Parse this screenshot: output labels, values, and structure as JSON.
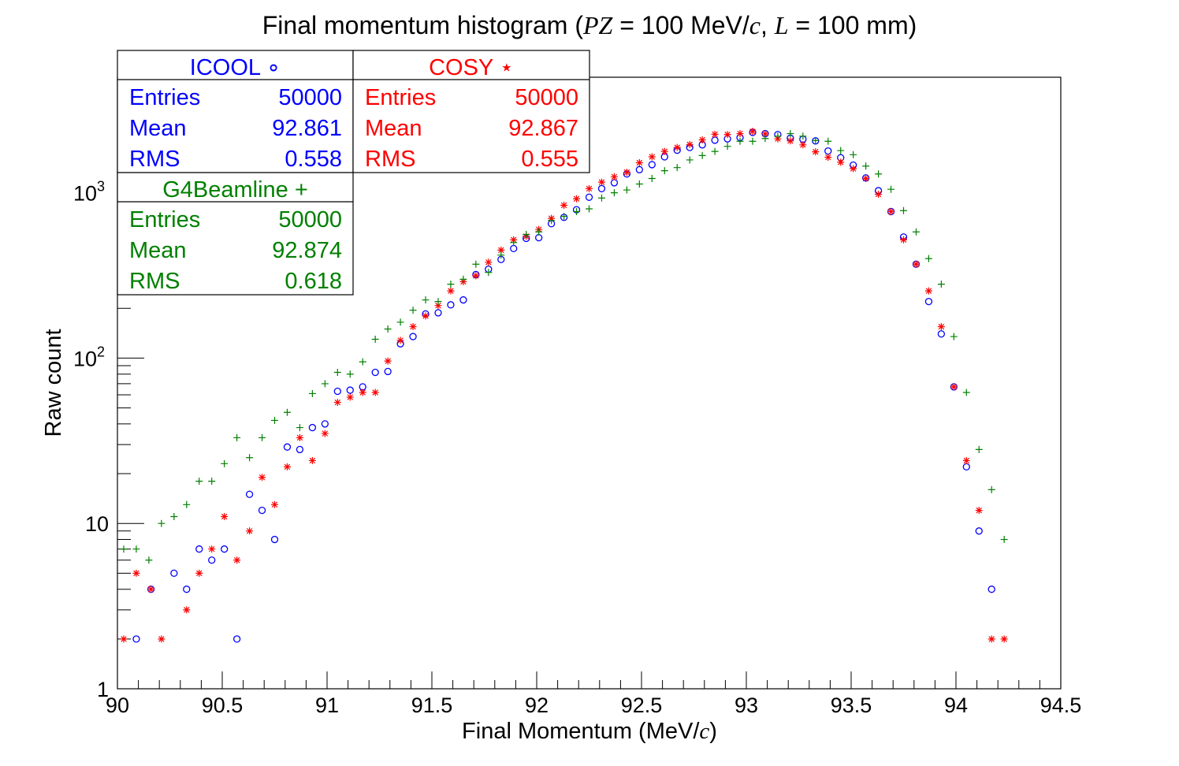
{
  "chart_data": {
    "type": "scatter",
    "title": {
      "prefix": "Final momentum histogram (",
      "var1": "PZ",
      "mid1": " = 100 MeV/",
      "var2": "c",
      "mid2": ", ",
      "var3": "L",
      "suffix": " = 100 mm)"
    },
    "xlabel": {
      "text": "Final Momentum (MeV/",
      "var": "c",
      "close": ")"
    },
    "ylabel": "Raw count",
    "xlim": [
      90,
      94.5
    ],
    "ylim": [
      1,
      5000
    ],
    "y_scale": "log",
    "x_ticks": [
      "90",
      "90.5",
      "91",
      "91.5",
      "92",
      "92.5",
      "93",
      "93.5",
      "94",
      "94.5"
    ],
    "y_ticks": [
      {
        "value": 1,
        "base": "1",
        "exp": ""
      },
      {
        "value": 10,
        "base": "10",
        "exp": ""
      },
      {
        "value": 100,
        "base": "10",
        "exp": "2"
      },
      {
        "value": 1000,
        "base": "10",
        "exp": "3"
      }
    ],
    "series": [
      {
        "name": "ICOOL",
        "marker": "circle",
        "marker_glyph": "∘",
        "color": "#0000ff",
        "stats": {
          "Entries": "50000",
          "Mean": "92.861",
          "RMS": "0.558"
        },
        "points": [
          [
            90.09,
            2
          ],
          [
            90.16,
            4
          ],
          [
            90.27,
            5
          ],
          [
            90.33,
            4
          ],
          [
            90.39,
            7
          ],
          [
            90.45,
            6
          ],
          [
            90.51,
            7
          ],
          [
            90.57,
            2
          ],
          [
            90.63,
            15
          ],
          [
            90.69,
            12
          ],
          [
            90.75,
            8
          ],
          [
            90.81,
            29
          ],
          [
            90.87,
            28
          ],
          [
            90.93,
            38
          ],
          [
            90.99,
            40
          ],
          [
            91.05,
            63
          ],
          [
            91.11,
            64
          ],
          [
            91.17,
            67
          ],
          [
            91.23,
            82
          ],
          [
            91.29,
            83
          ],
          [
            91.35,
            122
          ],
          [
            91.41,
            135
          ],
          [
            91.47,
            185
          ],
          [
            91.53,
            188
          ],
          [
            91.59,
            210
          ],
          [
            91.65,
            225
          ],
          [
            91.71,
            320
          ],
          [
            91.77,
            345
          ],
          [
            91.83,
            395
          ],
          [
            91.89,
            460
          ],
          [
            91.95,
            530
          ],
          [
            92.01,
            535
          ],
          [
            92.07,
            650
          ],
          [
            92.13,
            710
          ],
          [
            92.19,
            790
          ],
          [
            92.25,
            940
          ],
          [
            92.31,
            1060
          ],
          [
            92.37,
            1150
          ],
          [
            92.43,
            1300
          ],
          [
            92.49,
            1380
          ],
          [
            92.55,
            1480
          ],
          [
            92.61,
            1650
          ],
          [
            92.67,
            1810
          ],
          [
            92.73,
            1880
          ],
          [
            92.79,
            1950
          ],
          [
            92.85,
            2080
          ],
          [
            92.91,
            2120
          ],
          [
            92.97,
            2160
          ],
          [
            93.03,
            2320
          ],
          [
            93.09,
            2280
          ],
          [
            93.15,
            2250
          ],
          [
            93.21,
            2140
          ],
          [
            93.27,
            2110
          ],
          [
            93.33,
            2060
          ],
          [
            93.39,
            1790
          ],
          [
            93.45,
            1630
          ],
          [
            93.51,
            1470
          ],
          [
            93.57,
            1230
          ],
          [
            93.63,
            1030
          ],
          [
            93.69,
            770
          ],
          [
            93.75,
            540
          ],
          [
            93.81,
            370
          ],
          [
            93.87,
            220
          ],
          [
            93.93,
            140
          ],
          [
            93.99,
            67
          ],
          [
            94.05,
            22
          ],
          [
            94.11,
            9
          ],
          [
            94.17,
            4
          ]
        ]
      },
      {
        "name": "COSY",
        "marker": "star",
        "marker_glyph": "⋆",
        "color": "#ff0000",
        "stats": {
          "Entries": "50000",
          "Mean": "92.867",
          "RMS": "0.555"
        },
        "points": [
          [
            90.03,
            2
          ],
          [
            90.09,
            5
          ],
          [
            90.16,
            4
          ],
          [
            90.21,
            2
          ],
          [
            90.33,
            3
          ],
          [
            90.39,
            5
          ],
          [
            90.45,
            7
          ],
          [
            90.51,
            11
          ],
          [
            90.57,
            6
          ],
          [
            90.63,
            9
          ],
          [
            90.69,
            19
          ],
          [
            90.75,
            13
          ],
          [
            90.81,
            22
          ],
          [
            90.87,
            33
          ],
          [
            90.93,
            24
          ],
          [
            90.99,
            35
          ],
          [
            91.05,
            54
          ],
          [
            91.11,
            58
          ],
          [
            91.17,
            62
          ],
          [
            91.23,
            62
          ],
          [
            91.29,
            96
          ],
          [
            91.35,
            128
          ],
          [
            91.41,
            155
          ],
          [
            91.47,
            180
          ],
          [
            91.53,
            208
          ],
          [
            91.59,
            255
          ],
          [
            91.65,
            290
          ],
          [
            91.71,
            315
          ],
          [
            91.77,
            380
          ],
          [
            91.83,
            450
          ],
          [
            91.89,
            520
          ],
          [
            91.95,
            545
          ],
          [
            92.01,
            600
          ],
          [
            92.07,
            700
          ],
          [
            92.13,
            840
          ],
          [
            92.19,
            920
          ],
          [
            92.25,
            1060
          ],
          [
            92.31,
            1160
          ],
          [
            92.37,
            1250
          ],
          [
            92.43,
            1330
          ],
          [
            92.49,
            1520
          ],
          [
            92.55,
            1650
          ],
          [
            92.61,
            1780
          ],
          [
            92.67,
            1880
          ],
          [
            92.73,
            1960
          ],
          [
            92.79,
            2090
          ],
          [
            92.85,
            2260
          ],
          [
            92.91,
            2250
          ],
          [
            92.97,
            2280
          ],
          [
            93.03,
            2350
          ],
          [
            93.09,
            2270
          ],
          [
            93.15,
            2120
          ],
          [
            93.21,
            2060
          ],
          [
            93.27,
            1950
          ],
          [
            93.33,
            1770
          ],
          [
            93.39,
            1640
          ],
          [
            93.45,
            1530
          ],
          [
            93.51,
            1400
          ],
          [
            93.57,
            1220
          ],
          [
            93.63,
            980
          ],
          [
            93.69,
            770
          ],
          [
            93.75,
            520
          ],
          [
            93.81,
            370
          ],
          [
            93.87,
            255
          ],
          [
            93.93,
            155
          ],
          [
            93.99,
            67
          ],
          [
            94.05,
            24
          ],
          [
            94.11,
            12
          ],
          [
            94.17,
            2
          ],
          [
            94.23,
            2
          ]
        ]
      },
      {
        "name": "G4Beamline",
        "marker": "cross",
        "marker_glyph": "+",
        "color": "#008000",
        "stats": {
          "Entries": "50000",
          "Mean": "92.874",
          "RMS": "0.618"
        },
        "points": [
          [
            90.03,
            7
          ],
          [
            90.09,
            7
          ],
          [
            90.15,
            6
          ],
          [
            90.21,
            10
          ],
          [
            90.27,
            11
          ],
          [
            90.33,
            13
          ],
          [
            90.39,
            18
          ],
          [
            90.45,
            18
          ],
          [
            90.51,
            23
          ],
          [
            90.57,
            33
          ],
          [
            90.63,
            25
          ],
          [
            90.69,
            33
          ],
          [
            90.75,
            42
          ],
          [
            90.81,
            47
          ],
          [
            90.87,
            38
          ],
          [
            90.93,
            61
          ],
          [
            90.99,
            70
          ],
          [
            91.05,
            82
          ],
          [
            91.11,
            80
          ],
          [
            91.17,
            95
          ],
          [
            91.23,
            130
          ],
          [
            91.29,
            150
          ],
          [
            91.35,
            165
          ],
          [
            91.41,
            195
          ],
          [
            91.47,
            225
          ],
          [
            91.53,
            220
          ],
          [
            91.59,
            280
          ],
          [
            91.65,
            300
          ],
          [
            91.71,
            370
          ],
          [
            91.77,
            330
          ],
          [
            91.83,
            420
          ],
          [
            91.89,
            500
          ],
          [
            91.95,
            560
          ],
          [
            92.01,
            580
          ],
          [
            92.07,
            680
          ],
          [
            92.13,
            720
          ],
          [
            92.19,
            770
          ],
          [
            92.25,
            800
          ],
          [
            92.31,
            930
          ],
          [
            92.37,
            1000
          ],
          [
            92.43,
            1040
          ],
          [
            92.49,
            1130
          ],
          [
            92.55,
            1220
          ],
          [
            92.61,
            1360
          ],
          [
            92.67,
            1420
          ],
          [
            92.73,
            1580
          ],
          [
            92.79,
            1680
          ],
          [
            92.85,
            1780
          ],
          [
            92.91,
            1910
          ],
          [
            92.97,
            2050
          ],
          [
            93.03,
            2050
          ],
          [
            93.09,
            2130
          ],
          [
            93.15,
            2200
          ],
          [
            93.21,
            2280
          ],
          [
            93.27,
            2200
          ],
          [
            93.33,
            2070
          ],
          [
            93.39,
            2050
          ],
          [
            93.45,
            1800
          ],
          [
            93.51,
            1700
          ],
          [
            93.57,
            1450
          ],
          [
            93.63,
            1300
          ],
          [
            93.69,
            1050
          ],
          [
            93.75,
            780
          ],
          [
            93.81,
            580
          ],
          [
            93.87,
            400
          ],
          [
            93.93,
            280
          ],
          [
            93.99,
            135
          ],
          [
            94.05,
            62
          ],
          [
            94.11,
            28
          ],
          [
            94.17,
            16
          ],
          [
            94.23,
            8
          ]
        ]
      }
    ]
  }
}
